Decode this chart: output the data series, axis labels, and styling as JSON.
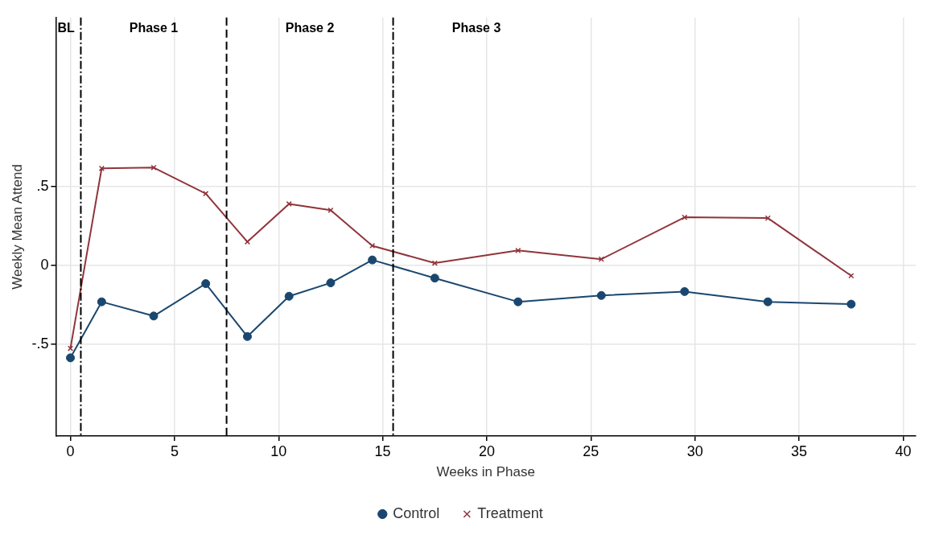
{
  "chart_data": {
    "type": "line",
    "xlabel": "Weeks in Phase",
    "ylabel": "Weekly Mean Attend",
    "x": [
      0,
      1.5,
      4,
      6.5,
      8.5,
      10.5,
      12.5,
      14.5,
      17.5,
      21.5,
      25.5,
      29.5,
      33.5,
      37.5
    ],
    "series": [
      {
        "name": "Control",
        "color": "#1a476f",
        "marker": "circle",
        "values": [
          -0.585,
          -0.23,
          -0.32,
          -0.115,
          -0.45,
          -0.195,
          -0.11,
          0.035,
          -0.08,
          -0.23,
          -0.19,
          -0.165,
          -0.23,
          -0.245
        ]
      },
      {
        "name": "Treatment",
        "color": "#90353b",
        "marker": "cross",
        "values": [
          -0.525,
          0.615,
          0.62,
          0.455,
          0.15,
          0.39,
          0.35,
          0.125,
          0.015,
          0.095,
          0.04,
          0.305,
          0.3,
          -0.065
        ]
      }
    ],
    "xlim": [
      -0.7,
      40.6
    ],
    "xticks": [
      0,
      5,
      10,
      15,
      20,
      25,
      30,
      35,
      40
    ],
    "ylim": [
      -1.08,
      1.57
    ],
    "yticks": [
      {
        "value": -0.5,
        "label": "-.5"
      },
      {
        "value": 0,
        "label": "0"
      },
      {
        "value": 0.5,
        "label": ".5"
      }
    ],
    "ref_lines": [
      {
        "axis": "x",
        "value": 0.5,
        "line_style": "dashdot",
        "color": "#000000"
      },
      {
        "axis": "x",
        "value": 7.5,
        "line_style": "dashed",
        "color": "#000000"
      },
      {
        "axis": "x",
        "value": 15.5,
        "line_style": "dashdot",
        "color": "#000000"
      }
    ],
    "annotations": [
      "BL",
      "Phase 1",
      "Phase 2",
      "Phase 3"
    ],
    "grid": true,
    "legend": "bottom"
  }
}
